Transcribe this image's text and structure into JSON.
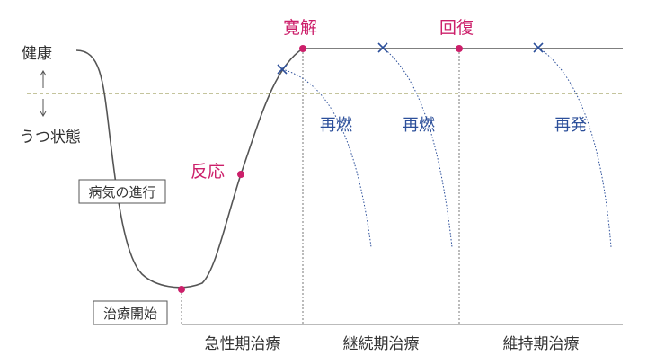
{
  "colors": {
    "curve": "#555555",
    "magenta": "#cc1f6a",
    "blue": "#2c4f9a",
    "threshold": "#8a8a3a",
    "phase_axis": "#777777",
    "box_border": "#555555"
  },
  "labels": {
    "healthy": "健康",
    "depressed": "うつ状態",
    "disease_progress": "病気の進行",
    "treatment_start": "治療開始",
    "response": "反応",
    "remission": "寛解",
    "recovery": "回復",
    "relapse1": "再燃",
    "relapse2": "再燃",
    "recurrence": "再発"
  },
  "phases": {
    "acute": "急性期治療",
    "continuation": "継続期治療",
    "maintenance": "維持期治療"
  },
  "icons": {
    "up_arrow": "arrow-up-icon",
    "down_arrow": "arrow-down-icon",
    "marker": "cross-marker-icon"
  }
}
